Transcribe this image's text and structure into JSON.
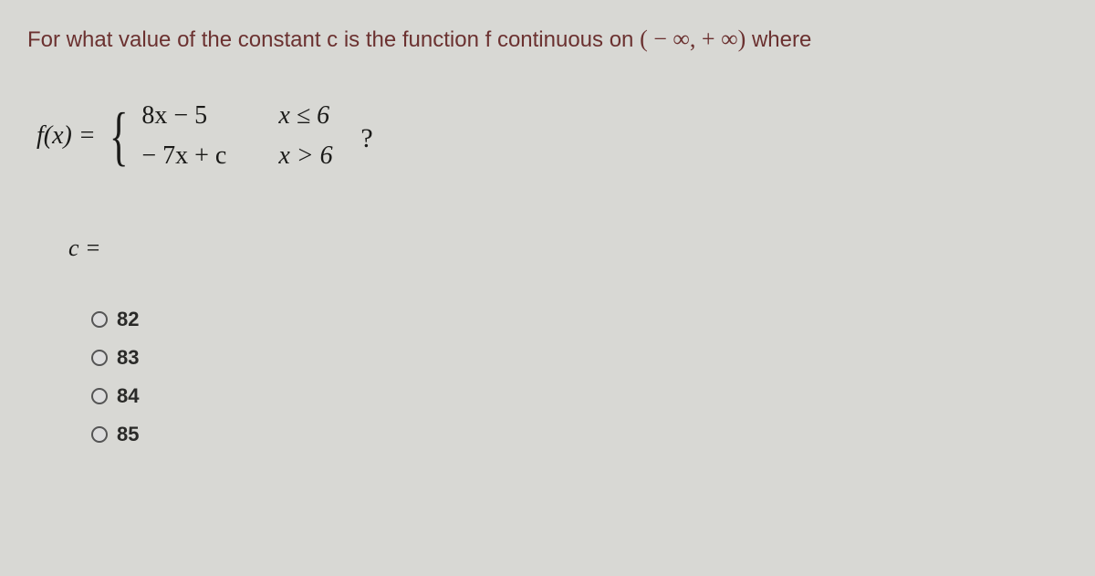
{
  "question": {
    "text_before": "For what value of the constant c is the function f continuous on ",
    "interval": "( − ∞, + ∞)",
    "text_after": " where"
  },
  "piecewise": {
    "fx": "f(x) =",
    "row1_expr": "8x − 5",
    "row1_cond": "x ≤ 6",
    "row2_expr": "− 7x + c",
    "row2_cond": "x > 6",
    "qmark": "?"
  },
  "prompt": "c =",
  "options": [
    {
      "label": "82"
    },
    {
      "label": "83"
    },
    {
      "label": "84"
    },
    {
      "label": "85"
    }
  ],
  "colors": {
    "background": "#d8d8d4",
    "question_color": "#6b3130",
    "math_color": "#1a1a18"
  }
}
